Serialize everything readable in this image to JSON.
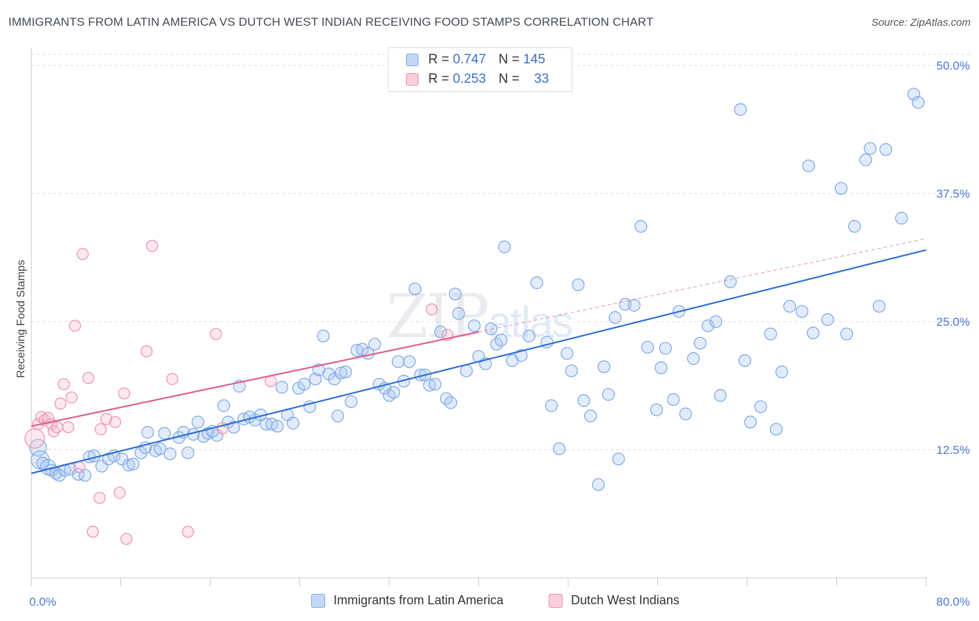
{
  "title": "IMMIGRANTS FROM LATIN AMERICA VS DUTCH WEST INDIAN RECEIVING FOOD STAMPS CORRELATION CHART",
  "source": "Source: ZipAtlas.com",
  "watermark": {
    "zip": "ZIP",
    "atlas": "atlas"
  },
  "colors": {
    "blue": "#7aa6e6",
    "blue_fill": "#a9c7f0",
    "blue_line": "#2f6fd0",
    "pink": "#ee8eaa",
    "pink_fill": "#f6bccd",
    "pink_line": "#e0608a",
    "grid": "#dcdde3",
    "tick_text": "#4a7bd0"
  },
  "legend_top": {
    "rows": [
      {
        "r_label": "R =",
        "r_value": "0.747",
        "n_label": "N =",
        "n_value": "145",
        "series": "blue"
      },
      {
        "r_label": "R =",
        "r_value": "0.253",
        "n_label": "N =",
        "n_value": "33",
        "series": "pink"
      }
    ]
  },
  "legend_bottom": {
    "items": [
      {
        "label": "Immigrants from Latin America",
        "series": "blue"
      },
      {
        "label": "Dutch West Indians",
        "series": "pink"
      }
    ]
  },
  "chart_data": {
    "type": "scatter",
    "title": "IMMIGRANTS FROM LATIN AMERICA VS DUTCH WEST INDIAN RECEIVING FOOD STAMPS CORRELATION CHART",
    "xlabel": "",
    "ylabel": "Receiving Food Stamps",
    "xlim": [
      0,
      80
    ],
    "ylim": [
      0,
      51.5
    ],
    "x_tick_labels": [
      "0.0%",
      "80.0%"
    ],
    "y_ticks": [
      12.5,
      25.0,
      37.5,
      50.0
    ],
    "y_tick_labels": [
      "12.5%",
      "25.0%",
      "37.5%",
      "50.0%"
    ],
    "grid": true,
    "legend_position": "top-center",
    "series": [
      {
        "name": "Immigrants from Latin America",
        "color": "blue",
        "trend": {
          "x0": 0,
          "y0": 10.2,
          "x1": 80,
          "y1": 32.0,
          "dash_x1": 80,
          "dash_y1": 32.0
        },
        "points": [
          [
            0.6,
            12.7
          ],
          [
            0.8,
            11.5
          ],
          [
            1.0,
            11.2
          ],
          [
            1.5,
            10.8
          ],
          [
            1.8,
            10.5
          ],
          [
            2.2,
            10.2
          ],
          [
            2.5,
            10.0
          ],
          [
            3.0,
            10.5
          ],
          [
            3.5,
            10.6
          ],
          [
            4.2,
            10.1
          ],
          [
            4.8,
            10.0
          ],
          [
            5.2,
            11.8
          ],
          [
            5.6,
            11.9
          ],
          [
            6.3,
            10.9
          ],
          [
            6.9,
            11.6
          ],
          [
            7.4,
            11.9
          ],
          [
            8.1,
            11.6
          ],
          [
            8.7,
            11.0
          ],
          [
            9.1,
            11.1
          ],
          [
            9.8,
            12.2
          ],
          [
            10.2,
            12.7
          ],
          [
            10.4,
            14.2
          ],
          [
            11.1,
            12.4
          ],
          [
            11.5,
            12.6
          ],
          [
            11.9,
            14.1
          ],
          [
            12.4,
            12.1
          ],
          [
            13.2,
            13.7
          ],
          [
            13.6,
            14.2
          ],
          [
            14.0,
            12.2
          ],
          [
            14.5,
            14.0
          ],
          [
            14.9,
            15.2
          ],
          [
            15.4,
            13.8
          ],
          [
            15.8,
            14.1
          ],
          [
            16.2,
            14.3
          ],
          [
            16.6,
            13.9
          ],
          [
            17.2,
            16.8
          ],
          [
            17.6,
            15.2
          ],
          [
            18.1,
            14.7
          ],
          [
            18.6,
            18.7
          ],
          [
            19.0,
            15.5
          ],
          [
            19.5,
            15.7
          ],
          [
            20.0,
            15.4
          ],
          [
            20.5,
            15.9
          ],
          [
            21.0,
            15.0
          ],
          [
            21.5,
            15.0
          ],
          [
            22.0,
            14.8
          ],
          [
            22.4,
            18.6
          ],
          [
            22.9,
            15.9
          ],
          [
            23.4,
            15.1
          ],
          [
            23.9,
            18.5
          ],
          [
            24.4,
            18.9
          ],
          [
            24.9,
            16.7
          ],
          [
            25.4,
            19.4
          ],
          [
            25.7,
            20.3
          ],
          [
            26.1,
            23.6
          ],
          [
            26.6,
            19.9
          ],
          [
            27.1,
            19.4
          ],
          [
            27.4,
            15.8
          ],
          [
            27.7,
            20.0
          ],
          [
            28.1,
            20.1
          ],
          [
            28.6,
            17.2
          ],
          [
            29.1,
            22.2
          ],
          [
            29.6,
            22.3
          ],
          [
            30.1,
            21.9
          ],
          [
            30.7,
            22.8
          ],
          [
            31.1,
            18.9
          ],
          [
            31.6,
            18.5
          ],
          [
            32.0,
            17.8
          ],
          [
            32.4,
            18.1
          ],
          [
            32.8,
            21.1
          ],
          [
            33.3,
            19.2
          ],
          [
            33.8,
            21.1
          ],
          [
            34.3,
            28.2
          ],
          [
            34.8,
            19.8
          ],
          [
            35.2,
            19.8
          ],
          [
            35.6,
            18.8
          ],
          [
            36.1,
            18.9
          ],
          [
            36.6,
            24.0
          ],
          [
            37.1,
            17.5
          ],
          [
            37.5,
            17.1
          ],
          [
            37.9,
            27.7
          ],
          [
            38.2,
            25.8
          ],
          [
            38.9,
            20.2
          ],
          [
            39.6,
            24.6
          ],
          [
            40.0,
            21.6
          ],
          [
            40.6,
            20.9
          ],
          [
            41.1,
            24.3
          ],
          [
            41.6,
            22.8
          ],
          [
            42.3,
            32.3
          ],
          [
            42.0,
            23.2
          ],
          [
            43.0,
            21.2
          ],
          [
            43.8,
            21.7
          ],
          [
            44.5,
            23.6
          ],
          [
            45.2,
            28.8
          ],
          [
            46.1,
            23.0
          ],
          [
            46.5,
            16.8
          ],
          [
            47.2,
            12.6
          ],
          [
            47.9,
            21.9
          ],
          [
            48.3,
            20.2
          ],
          [
            48.9,
            28.6
          ],
          [
            49.4,
            17.3
          ],
          [
            50.0,
            15.8
          ],
          [
            50.7,
            9.1
          ],
          [
            51.2,
            20.6
          ],
          [
            51.6,
            17.9
          ],
          [
            52.2,
            25.4
          ],
          [
            52.5,
            11.6
          ],
          [
            53.1,
            26.7
          ],
          [
            53.9,
            26.6
          ],
          [
            54.5,
            34.3
          ],
          [
            55.1,
            22.5
          ],
          [
            55.9,
            16.4
          ],
          [
            56.3,
            20.5
          ],
          [
            56.7,
            22.4
          ],
          [
            57.4,
            17.4
          ],
          [
            57.9,
            26.0
          ],
          [
            58.5,
            16.0
          ],
          [
            59.2,
            21.4
          ],
          [
            59.8,
            22.9
          ],
          [
            60.5,
            24.6
          ],
          [
            61.2,
            25.0
          ],
          [
            61.6,
            17.8
          ],
          [
            62.5,
            28.9
          ],
          [
            63.4,
            45.7
          ],
          [
            63.8,
            21.2
          ],
          [
            64.3,
            15.2
          ],
          [
            65.2,
            16.7
          ],
          [
            66.1,
            23.8
          ],
          [
            66.6,
            14.5
          ],
          [
            67.1,
            20.1
          ],
          [
            67.8,
            26.5
          ],
          [
            68.9,
            26.0
          ],
          [
            69.5,
            40.2
          ],
          [
            69.9,
            23.9
          ],
          [
            71.2,
            25.2
          ],
          [
            72.4,
            38.0
          ],
          [
            72.9,
            23.8
          ],
          [
            73.6,
            34.3
          ],
          [
            74.6,
            40.8
          ],
          [
            75.0,
            41.9
          ],
          [
            75.8,
            26.5
          ],
          [
            76.4,
            41.8
          ],
          [
            77.8,
            35.1
          ],
          [
            78.9,
            47.2
          ],
          [
            79.3,
            46.4
          ]
        ]
      },
      {
        "name": "Dutch West Indians",
        "color": "pink",
        "trend": {
          "x0": 0,
          "y0": 14.8,
          "x1": 40,
          "y1": 24.0,
          "dash_x1": 80,
          "dash_y1": 33.1
        },
        "points": [
          [
            0.3,
            13.6
          ],
          [
            0.6,
            15.0
          ],
          [
            0.9,
            15.7
          ],
          [
            1.2,
            15.4
          ],
          [
            1.5,
            15.6
          ],
          [
            1.8,
            15.0
          ],
          [
            2.0,
            14.3
          ],
          [
            2.3,
            14.7
          ],
          [
            2.6,
            17.0
          ],
          [
            2.9,
            18.9
          ],
          [
            3.3,
            14.7
          ],
          [
            3.6,
            17.6
          ],
          [
            3.9,
            24.6
          ],
          [
            4.3,
            10.8
          ],
          [
            4.6,
            31.6
          ],
          [
            5.1,
            19.5
          ],
          [
            5.5,
            4.5
          ],
          [
            6.1,
            7.8
          ],
          [
            6.2,
            14.5
          ],
          [
            6.7,
            15.5
          ],
          [
            7.5,
            15.2
          ],
          [
            7.9,
            8.3
          ],
          [
            8.3,
            18.0
          ],
          [
            8.5,
            3.8
          ],
          [
            10.3,
            22.1
          ],
          [
            10.8,
            32.4
          ],
          [
            12.6,
            19.4
          ],
          [
            14.0,
            4.5
          ],
          [
            16.5,
            23.8
          ],
          [
            17.1,
            14.6
          ],
          [
            21.4,
            19.2
          ],
          [
            35.8,
            26.2
          ],
          [
            37.2,
            23.7
          ]
        ]
      }
    ]
  }
}
